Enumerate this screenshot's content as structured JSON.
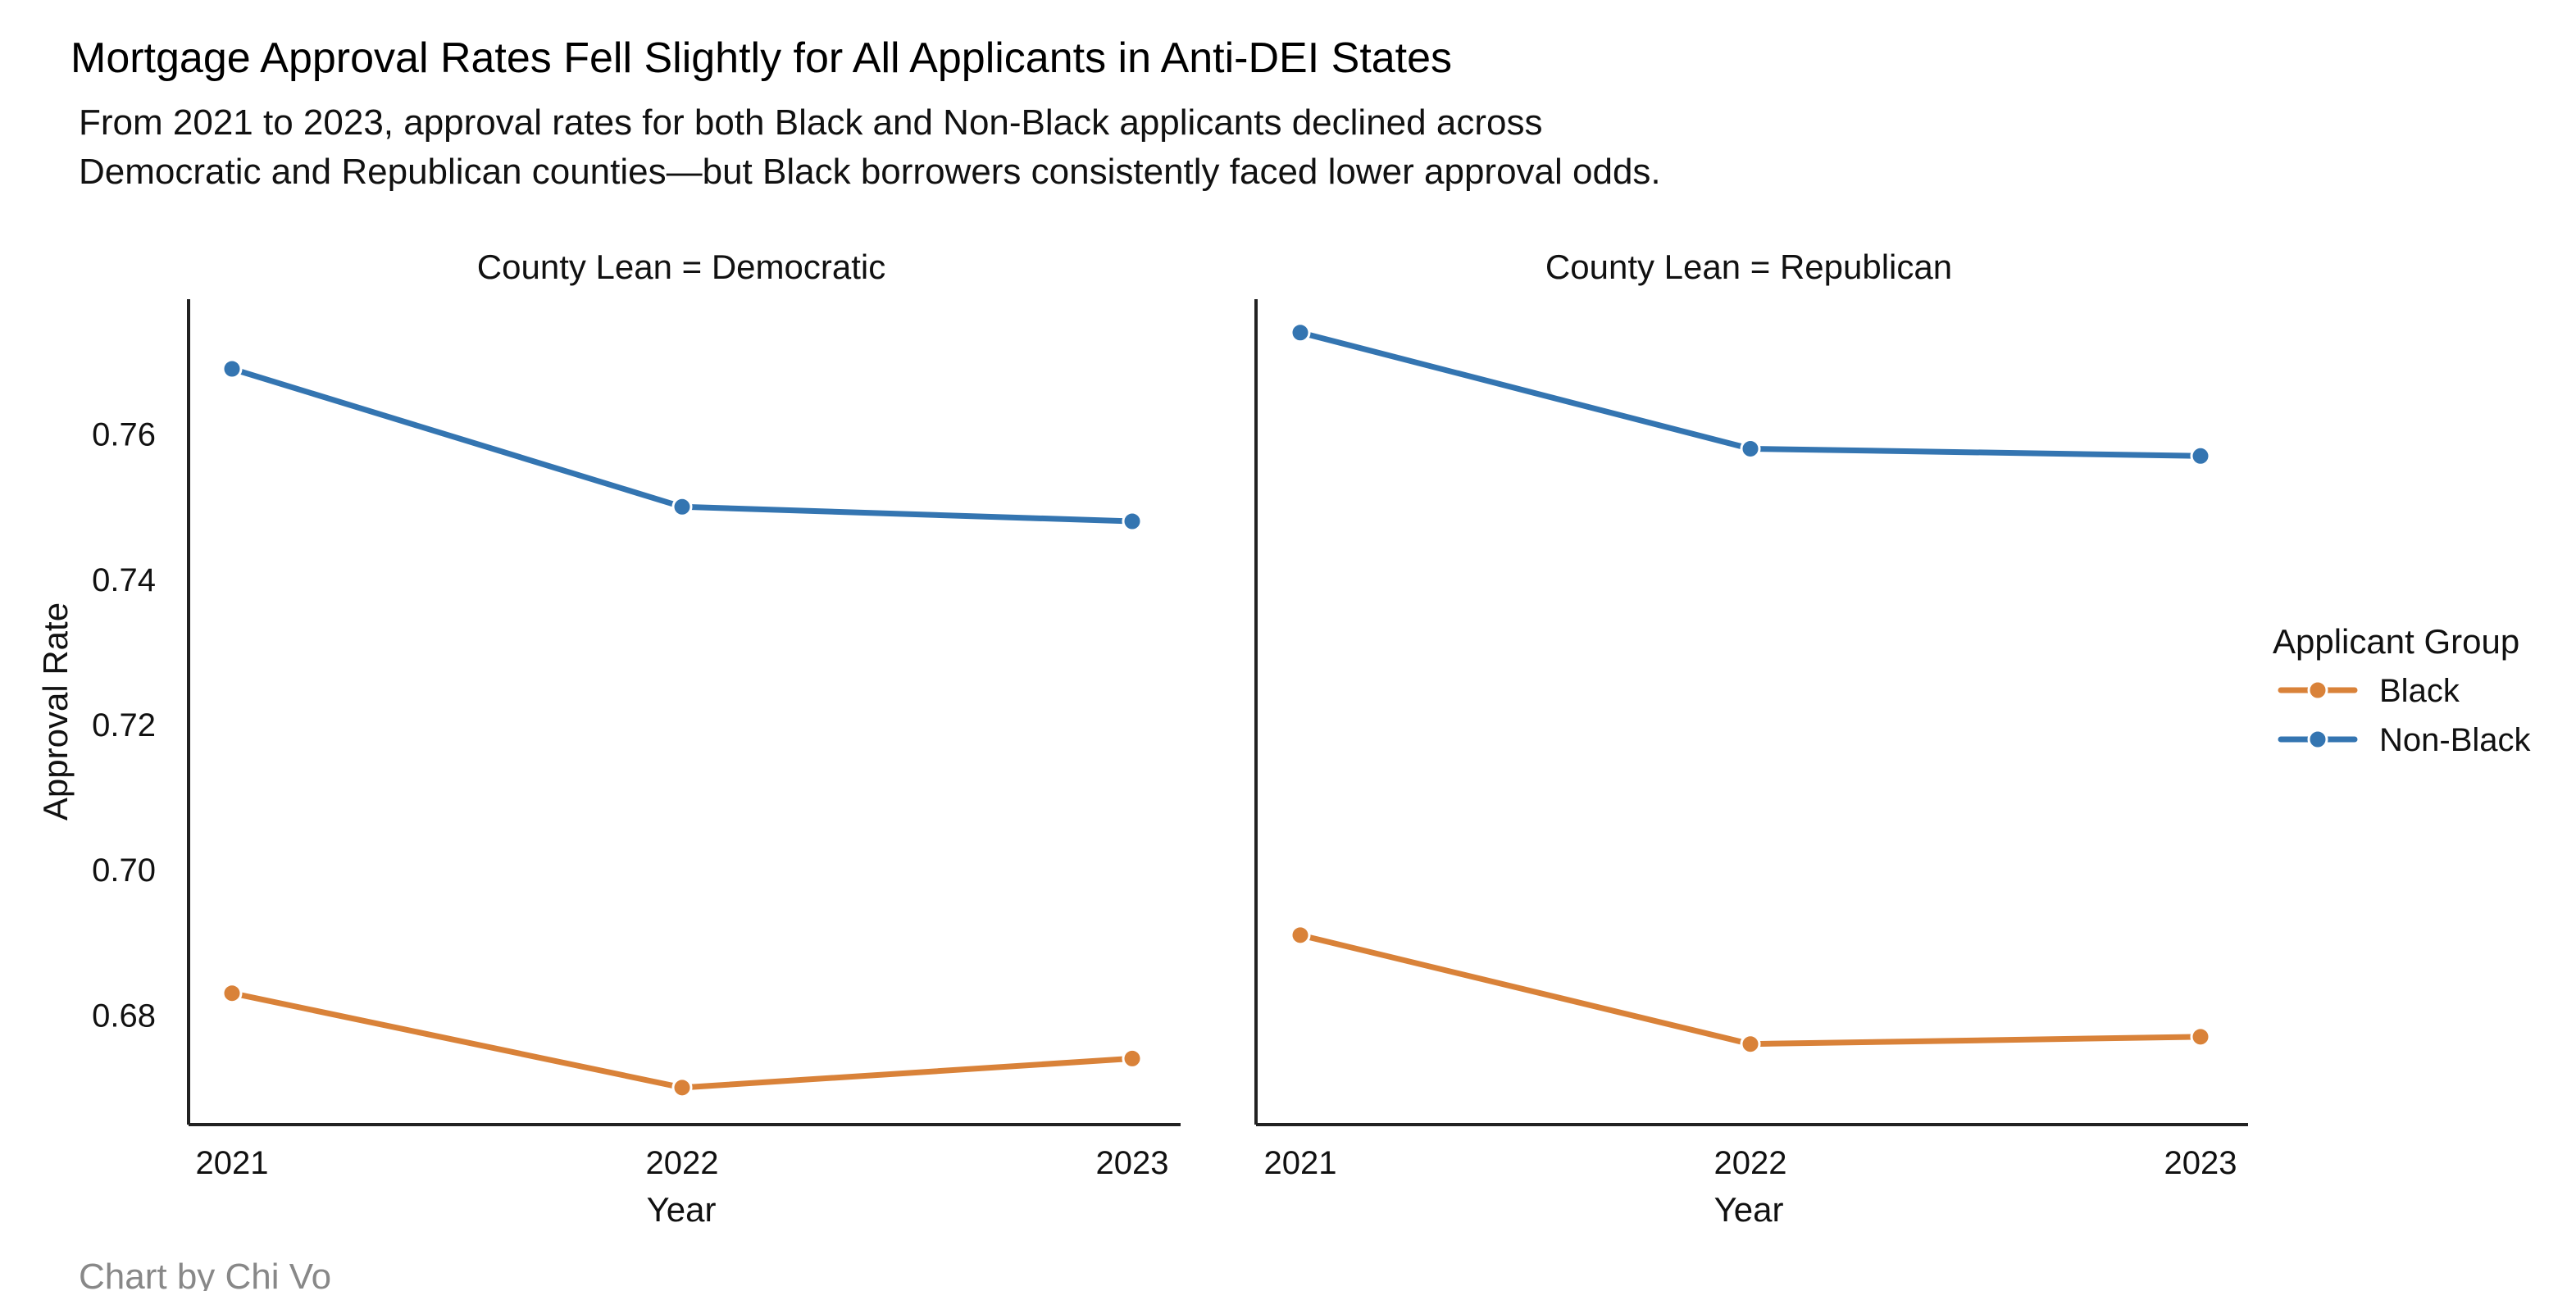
{
  "chart_data": {
    "type": "line",
    "title": "Mortgage Approval Rates Fell Slightly for All Applicants in Anti-DEI States",
    "subtitle_lines": [
      "From 2021 to 2023, approval rates for both Black and Non-Black applicants declined across",
      "Democratic and Republican counties—but Black borrowers consistently faced lower approval odds."
    ],
    "caption": "Chart by Chi Vo",
    "xlabel": "Year",
    "ylabel": "Approval Rate",
    "x": [
      "2021",
      "2022",
      "2023"
    ],
    "ylim": [
      0.6649,
      0.7786
    ],
    "yticks": [
      "0.68",
      "0.70",
      "0.72",
      "0.74",
      "0.76"
    ],
    "grid": false,
    "shared_y": true,
    "legend": {
      "title": "Applicant Group",
      "position": "right",
      "entries": [
        "Black",
        "Non-Black"
      ]
    },
    "colors": {
      "Black": "#d98239",
      "Non-Black": "#3475b1"
    },
    "panels": [
      {
        "title": "County  Lean = Democratic",
        "series": [
          {
            "name": "Black",
            "values": [
              0.683,
              0.67,
              0.674
            ]
          },
          {
            "name": "Non-Black",
            "values": [
              0.769,
              0.75,
              0.748
            ]
          }
        ]
      },
      {
        "title": "County  Lean = Republican",
        "series": [
          {
            "name": "Black",
            "values": [
              0.691,
              0.676,
              0.677
            ]
          },
          {
            "name": "Non-Black",
            "values": [
              0.774,
              0.758,
              0.757
            ]
          }
        ]
      }
    ]
  }
}
